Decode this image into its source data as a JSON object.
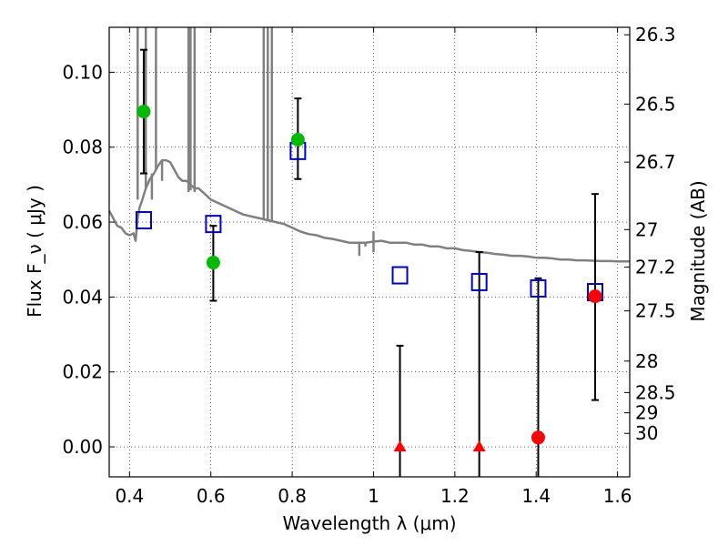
{
  "chart_data": {
    "type": "scatter",
    "xlabel": "Wavelength  λ (μm)",
    "ylabel": "Flux  F_ν  ( μJy )",
    "ylabel_right": "Magnitude (AB)",
    "xlim": [
      0.35,
      1.63
    ],
    "ylim": [
      -0.008,
      0.112
    ],
    "x_ticks": [
      {
        "value": 0.4,
        "label": "0.4"
      },
      {
        "value": 0.6,
        "label": "0.6"
      },
      {
        "value": 0.8,
        "label": "0.8"
      },
      {
        "value": 1.0,
        "label": "1"
      },
      {
        "value": 1.2,
        "label": "1.2"
      },
      {
        "value": 1.4,
        "label": "1.4"
      },
      {
        "value": 1.6,
        "label": "1.6"
      }
    ],
    "y_ticks": [
      {
        "value": 0.0,
        "label": "0.00"
      },
      {
        "value": 0.02,
        "label": "0.02"
      },
      {
        "value": 0.04,
        "label": "0.04"
      },
      {
        "value": 0.06,
        "label": "0.06"
      },
      {
        "value": 0.08,
        "label": "0.08"
      },
      {
        "value": 0.1,
        "label": "0.10"
      }
    ],
    "right_ticks": [
      {
        "flux": 0.11,
        "label": "26.3"
      },
      {
        "flux": 0.0915,
        "label": "26.5"
      },
      {
        "flux": 0.076,
        "label": "26.7"
      },
      {
        "flux": 0.058,
        "label": "27"
      },
      {
        "flux": 0.048,
        "label": "27.2"
      },
      {
        "flux": 0.0363,
        "label": "27.5"
      },
      {
        "flux": 0.0229,
        "label": "28"
      },
      {
        "flux": 0.0145,
        "label": "28.5"
      },
      {
        "flux": 0.0091,
        "label": "29"
      },
      {
        "flux": 0.0036,
        "label": "30"
      }
    ],
    "grid": true,
    "colors": {
      "detection": "#00bb00",
      "nondetection": "#ff0000",
      "model_photometry": "#0000cc",
      "sed": "#808080",
      "errorbar": "#000000"
    },
    "detections": [
      {
        "x": 0.435,
        "y": 0.0895,
        "yerr_lo": 0.073,
        "yerr_hi": 0.106
      },
      {
        "x": 0.606,
        "y": 0.0492,
        "yerr_lo": 0.039,
        "yerr_hi": 0.059
      },
      {
        "x": 0.814,
        "y": 0.082,
        "yerr_lo": 0.0715,
        "yerr_hi": 0.093
      }
    ],
    "nondetections": [
      {
        "x": 1.065,
        "y": 0.0,
        "marker": "triangle",
        "yerr_lo": -0.008,
        "yerr_hi": 0.027
      },
      {
        "x": 1.26,
        "y": 0.0,
        "marker": "triangle",
        "yerr_lo": -0.008,
        "yerr_hi": 0.052
      },
      {
        "x": 1.405,
        "y": 0.0025,
        "marker": "circle",
        "yerr_lo": -0.008,
        "yerr_hi": 0.045
      },
      {
        "x": 1.545,
        "y": 0.0402,
        "marker": "circle",
        "yerr_lo": 0.0125,
        "yerr_hi": 0.0675
      }
    ],
    "model_photometry": [
      {
        "x": 0.435,
        "y": 0.0605
      },
      {
        "x": 0.606,
        "y": 0.0595
      },
      {
        "x": 0.814,
        "y": 0.079
      },
      {
        "x": 1.065,
        "y": 0.0458
      },
      {
        "x": 1.26,
        "y": 0.044
      },
      {
        "x": 1.405,
        "y": 0.0423
      },
      {
        "x": 1.545,
        "y": 0.0413
      }
    ],
    "sed": [
      [
        0.35,
        0.063
      ],
      [
        0.36,
        0.061
      ],
      [
        0.37,
        0.059
      ],
      [
        0.38,
        0.0585
      ],
      [
        0.39,
        0.057
      ],
      [
        0.4,
        0.0565
      ],
      [
        0.41,
        0.057
      ],
      [
        0.415,
        0.055
      ],
      [
        0.42,
        0.061
      ],
      [
        0.425,
        0.064
      ],
      [
        0.43,
        0.0655
      ],
      [
        0.44,
        0.069
      ],
      [
        0.45,
        0.0715
      ],
      [
        0.46,
        0.073
      ],
      [
        0.47,
        0.075
      ],
      [
        0.48,
        0.0765
      ],
      [
        0.49,
        0.0765
      ],
      [
        0.5,
        0.076
      ],
      [
        0.51,
        0.074
      ],
      [
        0.52,
        0.072
      ],
      [
        0.53,
        0.071
      ],
      [
        0.54,
        0.071
      ],
      [
        0.55,
        0.07
      ],
      [
        0.56,
        0.069
      ],
      [
        0.57,
        0.069
      ],
      [
        0.58,
        0.068
      ],
      [
        0.59,
        0.067
      ],
      [
        0.6,
        0.066
      ],
      [
        0.62,
        0.065
      ],
      [
        0.64,
        0.064
      ],
      [
        0.66,
        0.063
      ],
      [
        0.68,
        0.062
      ],
      [
        0.7,
        0.0615
      ],
      [
        0.72,
        0.061
      ],
      [
        0.74,
        0.0605
      ],
      [
        0.76,
        0.06
      ],
      [
        0.78,
        0.0595
      ],
      [
        0.8,
        0.0585
      ],
      [
        0.82,
        0.0575
      ],
      [
        0.84,
        0.0568
      ],
      [
        0.86,
        0.0565
      ],
      [
        0.88,
        0.0558
      ],
      [
        0.9,
        0.0555
      ],
      [
        0.92,
        0.055
      ],
      [
        0.94,
        0.0545
      ],
      [
        0.96,
        0.0545
      ],
      [
        0.98,
        0.0545
      ],
      [
        1.0,
        0.0548
      ],
      [
        1.02,
        0.055
      ],
      [
        1.04,
        0.0545
      ],
      [
        1.06,
        0.0545
      ],
      [
        1.08,
        0.0545
      ],
      [
        1.1,
        0.054
      ],
      [
        1.12,
        0.054
      ],
      [
        1.14,
        0.0535
      ],
      [
        1.16,
        0.0535
      ],
      [
        1.18,
        0.053
      ],
      [
        1.2,
        0.053
      ],
      [
        1.22,
        0.0525
      ],
      [
        1.24,
        0.0523
      ],
      [
        1.26,
        0.052
      ],
      [
        1.28,
        0.0518
      ],
      [
        1.3,
        0.0515
      ],
      [
        1.32,
        0.0513
      ],
      [
        1.34,
        0.051
      ],
      [
        1.36,
        0.051
      ],
      [
        1.38,
        0.0508
      ],
      [
        1.4,
        0.0505
      ],
      [
        1.42,
        0.0505
      ],
      [
        1.44,
        0.0503
      ],
      [
        1.46,
        0.05
      ],
      [
        1.48,
        0.05
      ],
      [
        1.5,
        0.0498
      ],
      [
        1.52,
        0.0498
      ],
      [
        1.54,
        0.0497
      ],
      [
        1.56,
        0.0496
      ],
      [
        1.58,
        0.0496
      ],
      [
        1.6,
        0.0495
      ],
      [
        1.62,
        0.0495
      ],
      [
        1.63,
        0.0495
      ]
    ],
    "sed_lines": [
      {
        "x": 0.42,
        "y_top": 0.112,
        "y_bottom": 0.066
      },
      {
        "x": 0.44,
        "y_top": 0.112,
        "y_bottom": 0.069
      },
      {
        "x": 0.465,
        "y_top": 0.112,
        "y_bottom": 0.074
      },
      {
        "x": 0.545,
        "y_top": 0.112,
        "y_bottom": 0.068
      },
      {
        "x": 0.55,
        "y_top": 0.112,
        "y_bottom": 0.0685
      },
      {
        "x": 0.56,
        "y_top": 0.112,
        "y_bottom": 0.068
      },
      {
        "x": 0.73,
        "y_top": 0.112,
        "y_bottom": 0.0605
      },
      {
        "x": 0.74,
        "y_top": 0.112,
        "y_bottom": 0.0605
      },
      {
        "x": 0.75,
        "y_top": 0.112,
        "y_bottom": 0.06
      }
    ],
    "sed_dips": [
      {
        "x": 0.455,
        "y_top": 0.073,
        "y_bottom": 0.066
      },
      {
        "x": 0.48,
        "y_top": 0.0765,
        "y_bottom": 0.071
      },
      {
        "x": 0.965,
        "y_top": 0.0545,
        "y_bottom": 0.051
      },
      {
        "x": 0.98,
        "y_top": 0.0545,
        "y_bottom": 0.0535
      },
      {
        "x": 1.0,
        "y_top": 0.0575,
        "y_bottom": 0.052
      }
    ]
  }
}
